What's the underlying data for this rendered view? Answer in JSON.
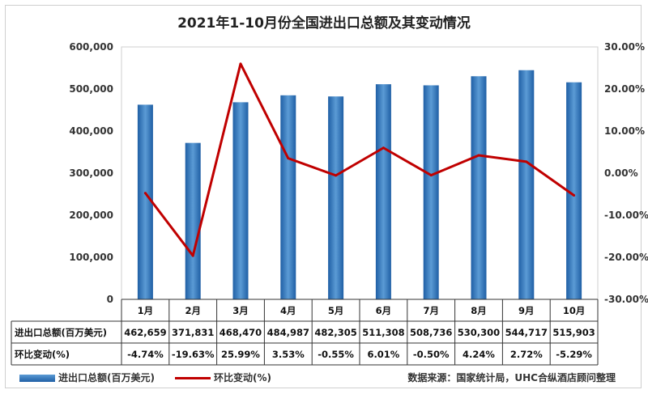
{
  "chart_data": {
    "type": "bar",
    "title": "2021年1-10月份全国进出口总额及其变动情况",
    "categories": [
      "1月",
      "2月",
      "3月",
      "4月",
      "5月",
      "6月",
      "7月",
      "8月",
      "9月",
      "10月"
    ],
    "series": [
      {
        "name": "进出口总额(百万美元)",
        "type": "bar",
        "values": [
          462659,
          371831,
          468470,
          484987,
          482305,
          511308,
          508736,
          530300,
          544717,
          515903
        ],
        "labels": [
          "462,659",
          "371,831",
          "468,470",
          "484,987",
          "482,305",
          "511,308",
          "508,736",
          "530,300",
          "544,717",
          "515,903"
        ],
        "color": "#2e75b6"
      },
      {
        "name": "环比变动(%)",
        "type": "line",
        "axis": "secondary",
        "values": [
          -4.74,
          -19.63,
          25.99,
          3.53,
          -0.55,
          6.01,
          -0.5,
          4.24,
          2.72,
          -5.29
        ],
        "labels": [
          "-4.74%",
          "-19.63%",
          "25.99%",
          "3.53%",
          "-0.55%",
          "6.01%",
          "-0.50%",
          "4.24%",
          "2.72%",
          "-5.29%"
        ],
        "color": "#c00000"
      }
    ],
    "ylim": [
      0,
      600000
    ],
    "y_ticks": [
      "0",
      "100,000",
      "200,000",
      "300,000",
      "400,000",
      "500,000",
      "600,000"
    ],
    "y2lim": [
      -30,
      30
    ],
    "y2_ticks": [
      "-30.00%",
      "-20.00%",
      "-10.00%",
      "0.00%",
      "10.00%",
      "20.00%",
      "30.00%"
    ],
    "grid": false,
    "legend": "bottom-left",
    "table_row_labels": [
      "进出口总额(百万美元)",
      "环比变动(%)"
    ],
    "source": "数据来源：国家统计局，UHC合纵酒店顾问整理"
  }
}
